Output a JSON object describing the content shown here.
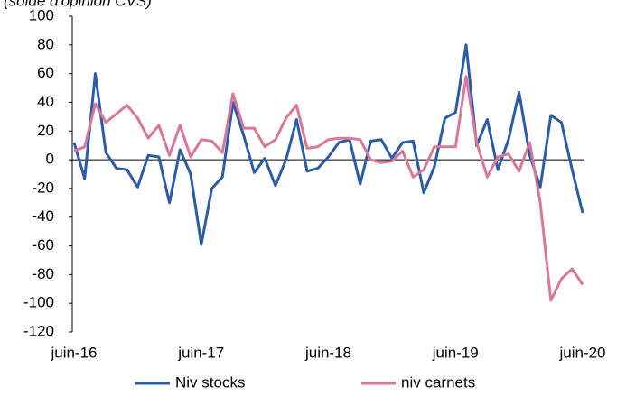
{
  "chart_data": {
    "type": "line",
    "subtitle": "(solde d'opinion CVS)",
    "categories": [
      "juin-16",
      null,
      null,
      null,
      null,
      null,
      null,
      null,
      null,
      null,
      null,
      null,
      "juin-17",
      null,
      null,
      null,
      null,
      null,
      null,
      null,
      null,
      null,
      null,
      null,
      "juin-18",
      null,
      null,
      null,
      null,
      null,
      null,
      null,
      null,
      null,
      null,
      null,
      "juin-19",
      null,
      null,
      null,
      null,
      null,
      null,
      null,
      null,
      null,
      null,
      null,
      "juin-20"
    ],
    "series": [
      {
        "name": "Niv stocks",
        "color": "#2a5ca8",
        "values": [
          12,
          -13,
          60,
          5,
          -6,
          -7,
          -19,
          3,
          2,
          -30,
          7,
          -10,
          -59,
          -20,
          -12,
          40,
          17,
          -9,
          1,
          -18,
          0,
          28,
          -8,
          -6,
          2,
          12,
          14,
          -17,
          13,
          14,
          1,
          12,
          13,
          -23,
          -5,
          29,
          33,
          80,
          10,
          28,
          -7,
          14,
          47,
          3,
          -19,
          31,
          26,
          -7,
          -37
        ]
      },
      {
        "name": "niv carnets",
        "color": "#d9779a",
        "values": [
          6,
          9,
          39,
          26,
          32,
          38,
          29,
          15,
          24,
          3,
          24,
          2,
          14,
          13,
          5,
          46,
          22,
          22,
          9,
          14,
          29,
          38,
          8,
          9,
          14,
          15,
          15,
          14,
          0,
          -2,
          -1,
          6,
          -12,
          -7,
          9,
          9,
          9,
          58,
          12,
          -12,
          2,
          4,
          -8,
          12,
          -30,
          -98,
          -83,
          -76,
          -87
        ]
      }
    ],
    "ylim": [
      -120,
      100
    ],
    "yticks": [
      -120,
      -100,
      -80,
      -60,
      -40,
      -20,
      0,
      20,
      40,
      60,
      80,
      100
    ],
    "legend": "bottom"
  }
}
